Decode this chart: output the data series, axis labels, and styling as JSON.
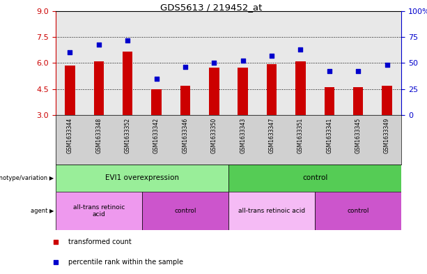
{
  "title": "GDS5613 / 219452_at",
  "samples": [
    "GSM1633344",
    "GSM1633348",
    "GSM1633352",
    "GSM1633342",
    "GSM1633346",
    "GSM1633350",
    "GSM1633343",
    "GSM1633347",
    "GSM1633351",
    "GSM1633341",
    "GSM1633345",
    "GSM1633349"
  ],
  "bar_values": [
    5.85,
    6.1,
    6.65,
    4.5,
    4.7,
    5.75,
    5.75,
    5.95,
    6.1,
    4.6,
    4.6,
    4.7
  ],
  "dot_values_pct": [
    60,
    68,
    72,
    35,
    46,
    50,
    52,
    57,
    63,
    42,
    42,
    48
  ],
  "bar_color": "#cc0000",
  "dot_color": "#0000cc",
  "ylim_left": [
    3,
    9
  ],
  "ylim_right": [
    0,
    100
  ],
  "yticks_left": [
    3,
    4.5,
    6,
    7.5,
    9
  ],
  "yticks_right": [
    0,
    25,
    50,
    75,
    100
  ],
  "ytick_labels_right": [
    "0",
    "25",
    "50",
    "75",
    "100%"
  ],
  "hlines": [
    4.5,
    6.0,
    7.5
  ],
  "genotype_groups": [
    {
      "label": "EVI1 overexpression",
      "start": 0,
      "end": 6,
      "color": "#99ee99"
    },
    {
      "label": "control",
      "start": 6,
      "end": 12,
      "color": "#55cc55"
    }
  ],
  "agent_groups": [
    {
      "label": "all-trans retinoic\nacid",
      "start": 0,
      "end": 3,
      "color": "#ee99ee"
    },
    {
      "label": "control",
      "start": 3,
      "end": 6,
      "color": "#cc55cc"
    },
    {
      "label": "all-trans retinoic acid",
      "start": 6,
      "end": 9,
      "color": "#f5bbf5"
    },
    {
      "label": "control",
      "start": 9,
      "end": 12,
      "color": "#cc55cc"
    }
  ],
  "legend_items": [
    {
      "label": "transformed count",
      "color": "#cc0000"
    },
    {
      "label": "percentile rank within the sample",
      "color": "#0000cc"
    }
  ],
  "left_axis_color": "#cc0000",
  "right_axis_color": "#0000cc",
  "bar_width": 0.35,
  "plot_bg": "#e8e8e8",
  "fig_bg": "#ffffff",
  "tick_label_bg": "#d0d0d0"
}
